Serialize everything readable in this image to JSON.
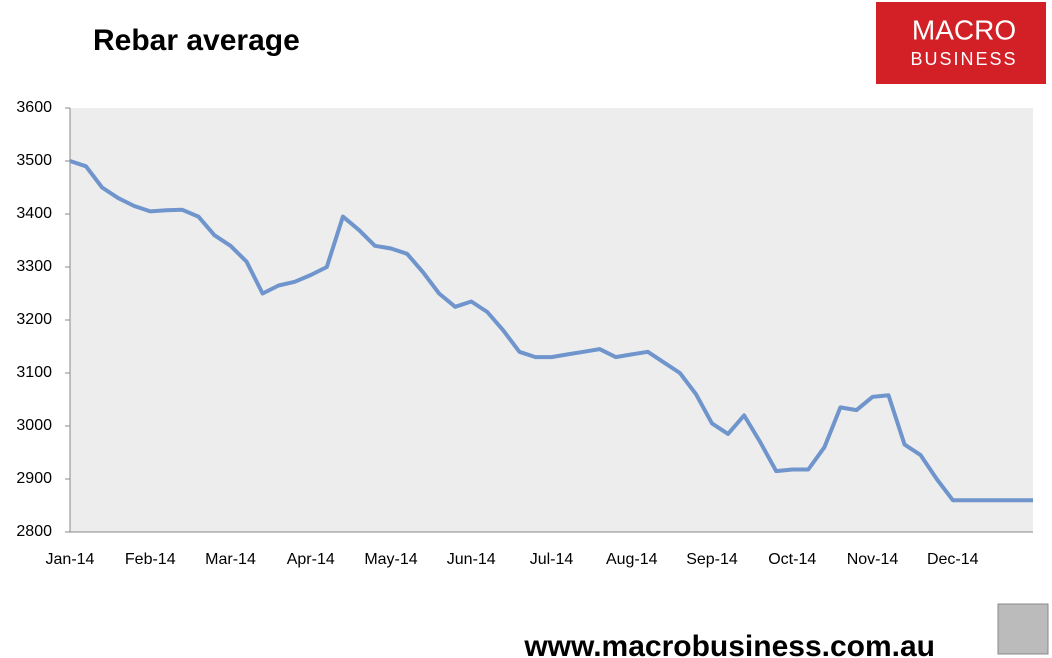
{
  "chart_data": {
    "type": "line",
    "title": "Rebar average",
    "categories": [
      "Jan-14",
      null,
      null,
      null,
      null,
      "Feb-14",
      null,
      null,
      null,
      null,
      "Mar-14",
      null,
      null,
      null,
      null,
      "Apr-14",
      null,
      null,
      null,
      null,
      "May-14",
      null,
      null,
      null,
      null,
      "Jun-14",
      null,
      null,
      null,
      null,
      "Jul-14",
      null,
      null,
      null,
      null,
      "Aug-14",
      null,
      null,
      null,
      null,
      "Sep-14",
      null,
      null,
      null,
      null,
      "Oct-14",
      null,
      null,
      null,
      null,
      "Nov-14",
      null,
      null,
      null,
      null,
      "Dec-14",
      null,
      null,
      null,
      null,
      null
    ],
    "series": [
      {
        "name": "Rebar average",
        "color": "#6f95cc",
        "values": [
          3500,
          3490,
          3450,
          3430,
          3415,
          3405,
          3407,
          3408,
          3395,
          3360,
          3340,
          3310,
          3250,
          3265,
          3272,
          3285,
          3300,
          3395,
          3370,
          3340,
          3335,
          3325,
          3290,
          3250,
          3225,
          3235,
          3215,
          3180,
          3140,
          3130,
          3130,
          3135,
          3140,
          3145,
          3130,
          3135,
          3140,
          3120,
          3100,
          3060,
          3005,
          2985,
          3020,
          2970,
          2915,
          2918,
          2918,
          2960,
          3035,
          3030,
          3055,
          3058,
          2965,
          2945,
          2900,
          2860,
          2860,
          2860,
          2860,
          2860,
          2860
        ]
      }
    ],
    "ylim": [
      2800,
      3600
    ],
    "yticks": [
      2800,
      2900,
      3000,
      3100,
      3200,
      3300,
      3400,
      3500,
      3600
    ],
    "grid": false
  },
  "logo": {
    "line1": "MACRO",
    "line2": "BUSINESS"
  },
  "footer": "www.macrobusiness.com.au"
}
